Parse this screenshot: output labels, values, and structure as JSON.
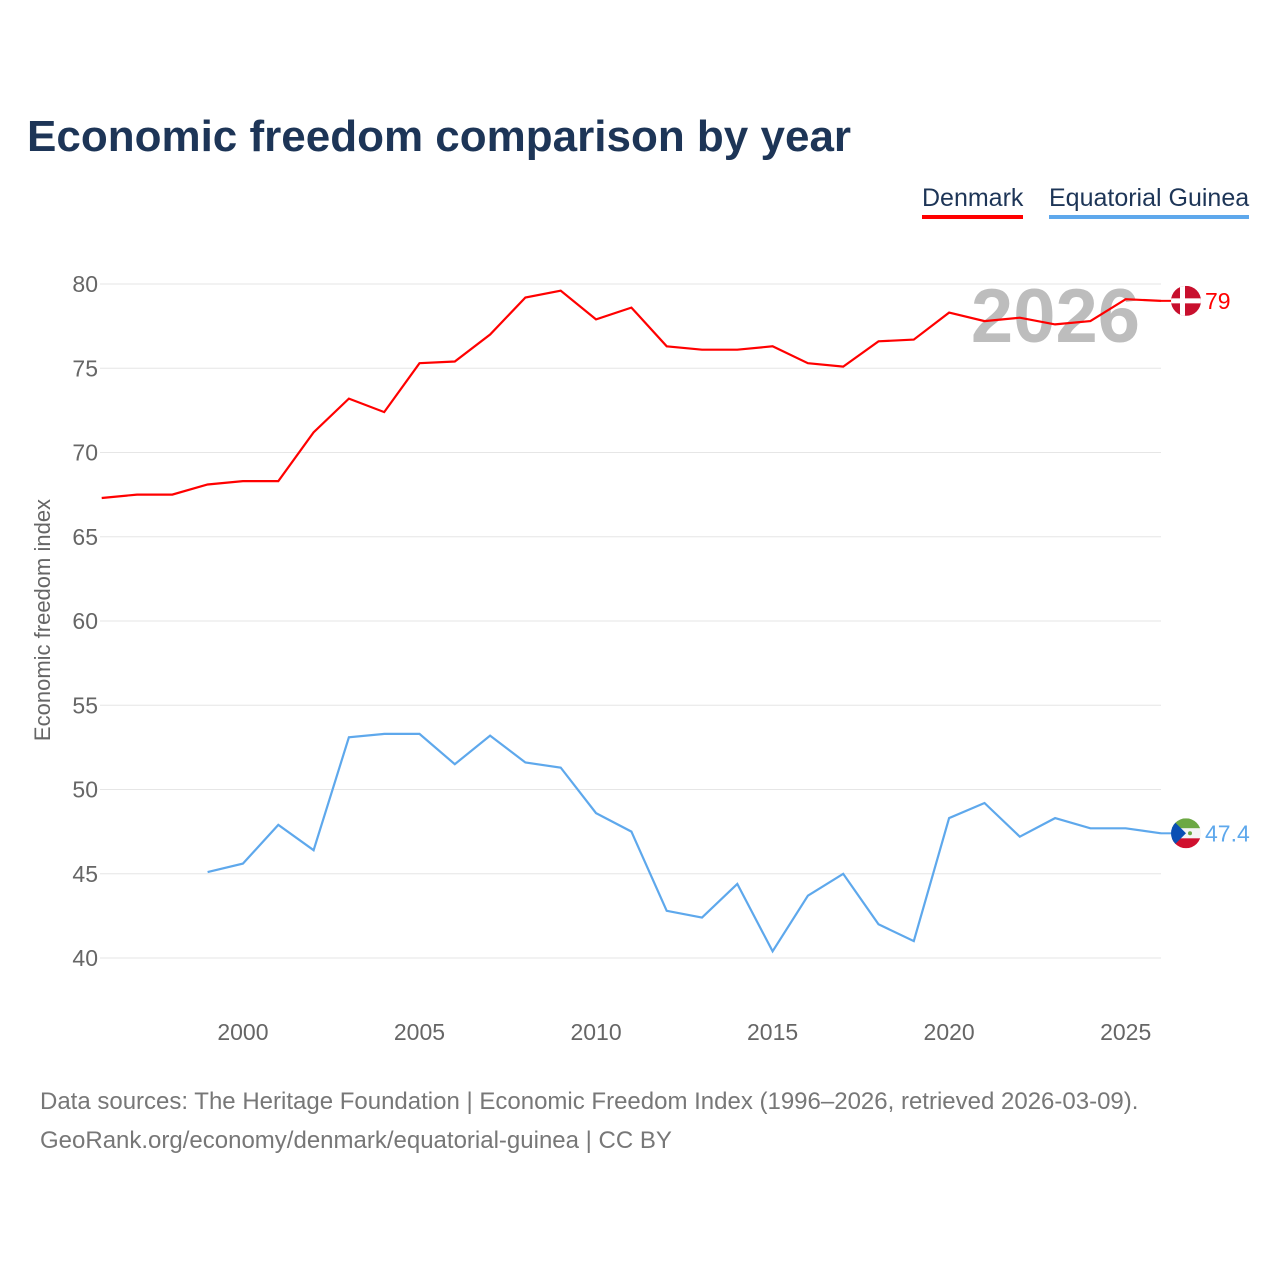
{
  "title": "Economic freedom comparison by year",
  "footer": {
    "line1": "Data sources: The Heritage Foundation | Economic Freedom Index (1996–2026, retrieved 2026-03-09).",
    "line2": "GeoRank.org/economy/denmark/equatorial-guinea | CC BY"
  },
  "chart_data": {
    "type": "line",
    "title": "Economic freedom comparison by year",
    "xlabel": "",
    "ylabel": "Economic freedom index",
    "xlim": [
      1996,
      2026
    ],
    "ylim": [
      40,
      80
    ],
    "yticks": [
      40,
      45,
      50,
      55,
      60,
      65,
      70,
      75,
      80
    ],
    "xticks": [
      2000,
      2005,
      2010,
      2015,
      2020,
      2025
    ],
    "grid": true,
    "legend_position": "top-right",
    "year_watermark": "2026",
    "series": [
      {
        "name": "Denmark",
        "color": "#ff0000",
        "end_label": "79",
        "start_year": 1996,
        "values": [
          67.3,
          67.5,
          67.5,
          68.1,
          68.3,
          68.3,
          71.2,
          73.2,
          72.4,
          75.3,
          75.4,
          77.0,
          79.2,
          79.6,
          77.9,
          78.6,
          76.3,
          76.1,
          76.1,
          76.3,
          75.3,
          75.1,
          76.6,
          76.7,
          78.3,
          77.8,
          78.0,
          77.6,
          77.8,
          79.1,
          79.0
        ]
      },
      {
        "name": "Equatorial Guinea",
        "color": "#5ea8ec",
        "end_label": "47.4",
        "start_year": 1999,
        "values": [
          45.1,
          45.6,
          47.9,
          46.4,
          53.1,
          53.3,
          53.3,
          51.5,
          53.2,
          51.6,
          51.3,
          48.6,
          47.5,
          42.8,
          42.4,
          44.4,
          40.4,
          43.7,
          45.0,
          42.0,
          41.0,
          48.3,
          49.2,
          47.2,
          48.3,
          47.7,
          47.7,
          47.4
        ]
      }
    ]
  }
}
